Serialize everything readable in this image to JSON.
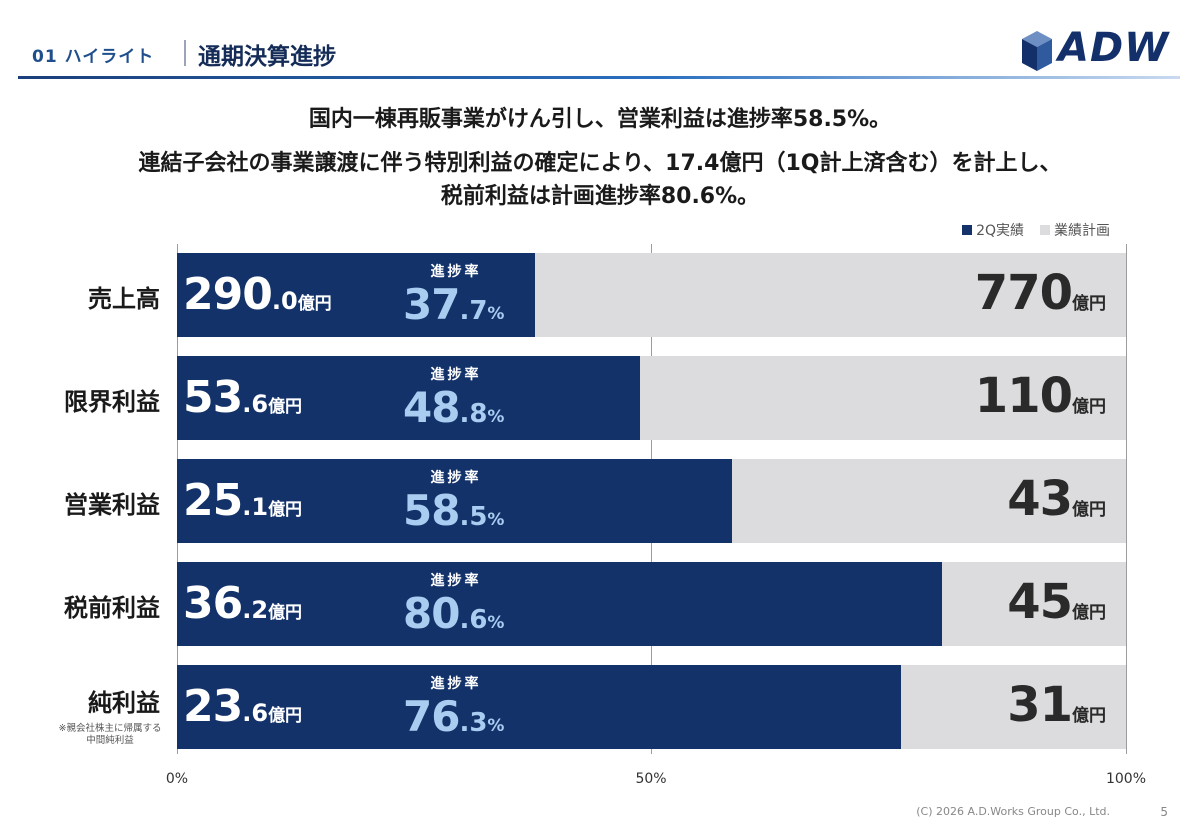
{
  "header": {
    "section": "01 ハイライト",
    "title": "通期決算進捗",
    "logo_text": "ADW"
  },
  "headline": {
    "line1": "国内一棟再販事業がけん引し、営業利益は進捗率58.5%。",
    "line2": "連結子会社の事業譲渡に伴う特別利益の確定により、17.4億円（1Q計上済含む）を計上し、",
    "line3": "税前利益は計画進捗率80.6%。"
  },
  "chart_data": {
    "type": "bar",
    "orientation": "horizontal",
    "unit": "億円",
    "rate_label": "進捗率",
    "x_ticks": [
      "0%",
      "50%",
      "100%"
    ],
    "xlim": [
      0,
      100
    ],
    "legend": {
      "placement": "top-right",
      "actual": "2Q実績",
      "plan": "業績計画"
    },
    "colors": {
      "actual": "#13326a",
      "plan": "#dcdcde",
      "rate": "#a9cdf0"
    },
    "categories": [
      "売上高",
      "限界利益",
      "営業利益",
      "税前利益",
      "純利益"
    ],
    "rows": [
      {
        "category": "売上高",
        "note": "",
        "actual_int": "290",
        "actual_dec": ".0",
        "plan": "770",
        "rate_int": "37",
        "rate_dec": ".7",
        "rate": 37.7
      },
      {
        "category": "限界利益",
        "note": "",
        "actual_int": "53",
        "actual_dec": ".6",
        "plan": "110",
        "rate_int": "48",
        "rate_dec": ".8",
        "rate": 48.8
      },
      {
        "category": "営業利益",
        "note": "",
        "actual_int": "25",
        "actual_dec": ".1",
        "plan": "43",
        "rate_int": "58",
        "rate_dec": ".5",
        "rate": 58.5
      },
      {
        "category": "税前利益",
        "note": "",
        "actual_int": "36",
        "actual_dec": ".2",
        "plan": "45",
        "rate_int": "80",
        "rate_dec": ".6",
        "rate": 80.6
      },
      {
        "category": "純利益",
        "note": "※親会社株主に帰属する\n中間純利益",
        "actual_int": "23",
        "actual_dec": ".6",
        "plan": "31",
        "rate_int": "76",
        "rate_dec": ".3",
        "rate": 76.3
      }
    ]
  },
  "footer": {
    "copyright": "(C) 2026  A.D.Works Group Co., Ltd.",
    "page": "5"
  }
}
